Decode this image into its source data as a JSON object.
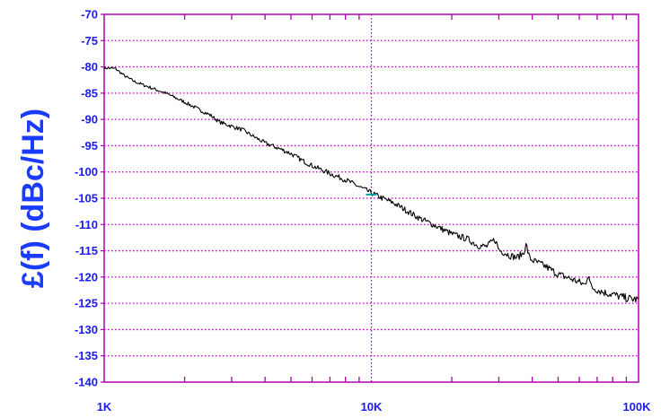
{
  "chart_data": {
    "type": "line",
    "title": "",
    "ylabel": "£(f) (dBc/Hz)",
    "xlabel": "",
    "x_scale": "log",
    "xlim": [
      1000,
      100000
    ],
    "ylim": [
      -140,
      -70
    ],
    "x_major_ticks": [
      1000,
      10000,
      100000
    ],
    "x_tick_labels": [
      "1K",
      "10K",
      "100K"
    ],
    "x_minor_ticks": [
      2000,
      3000,
      4000,
      5000,
      6000,
      7000,
      8000,
      9000,
      20000,
      30000,
      40000,
      50000,
      60000,
      70000,
      80000,
      90000
    ],
    "y_ticks": [
      -70,
      -75,
      -80,
      -85,
      -90,
      -95,
      -100,
      -105,
      -110,
      -115,
      -120,
      -125,
      -130,
      -135,
      -140
    ],
    "y_tick_labels": [
      "-70",
      "-75",
      "-80",
      "-85",
      "-90",
      "-95",
      "-100",
      "-105",
      "-110",
      "-115",
      "-120",
      "-125",
      "-130",
      "-135",
      "-140"
    ],
    "grid": true,
    "colors": {
      "axes": "#b000b0",
      "grid": "#b000b0",
      "tick_labels": "#1a1aff",
      "ylabel": "#1a3cff",
      "trace": "#000000",
      "marker": "#00a0a0"
    },
    "series": [
      {
        "color": "#000000",
        "x": [
          1000,
          1100,
          1200,
          1300,
          1500,
          1700,
          2000,
          2300,
          2500,
          2700,
          3000,
          3300,
          3500,
          4000,
          4500,
          5000,
          5500,
          6000,
          7000,
          8000,
          9000,
          10000,
          11000,
          12000,
          13000,
          15000,
          17000,
          20000,
          23000,
          25000,
          27000,
          29000,
          30000,
          33000,
          35000,
          37000,
          38000,
          39000,
          40000,
          45000,
          50000,
          55000,
          60000,
          63000,
          65000,
          66000,
          67000,
          70000,
          75000,
          80000,
          85000,
          90000,
          95000,
          100000
        ],
        "y": [
          -80.2,
          -80.3,
          -81.8,
          -82.8,
          -84.0,
          -85.0,
          -86.7,
          -88.3,
          -89.2,
          -90.5,
          -91.3,
          -92.0,
          -92.8,
          -94.5,
          -95.5,
          -96.5,
          -97.8,
          -98.8,
          -100.3,
          -101.5,
          -102.8,
          -104.0,
          -105.0,
          -105.8,
          -106.8,
          -108.7,
          -110.0,
          -111.8,
          -112.8,
          -114.0,
          -114.2,
          -112.8,
          -114.8,
          -115.9,
          -116.3,
          -115.5,
          -113.8,
          -116.3,
          -116.8,
          -118.0,
          -119.5,
          -120.2,
          -121.0,
          -121.5,
          -119.2,
          -121.6,
          -122.0,
          -122.4,
          -123.0,
          -123.3,
          -123.7,
          -124.0,
          -124.2,
          -124.3
        ]
      }
    ],
    "annotations": [
      {
        "type": "marker",
        "x": 10000,
        "y": -104.3,
        "color": "#00a0a0"
      }
    ]
  }
}
